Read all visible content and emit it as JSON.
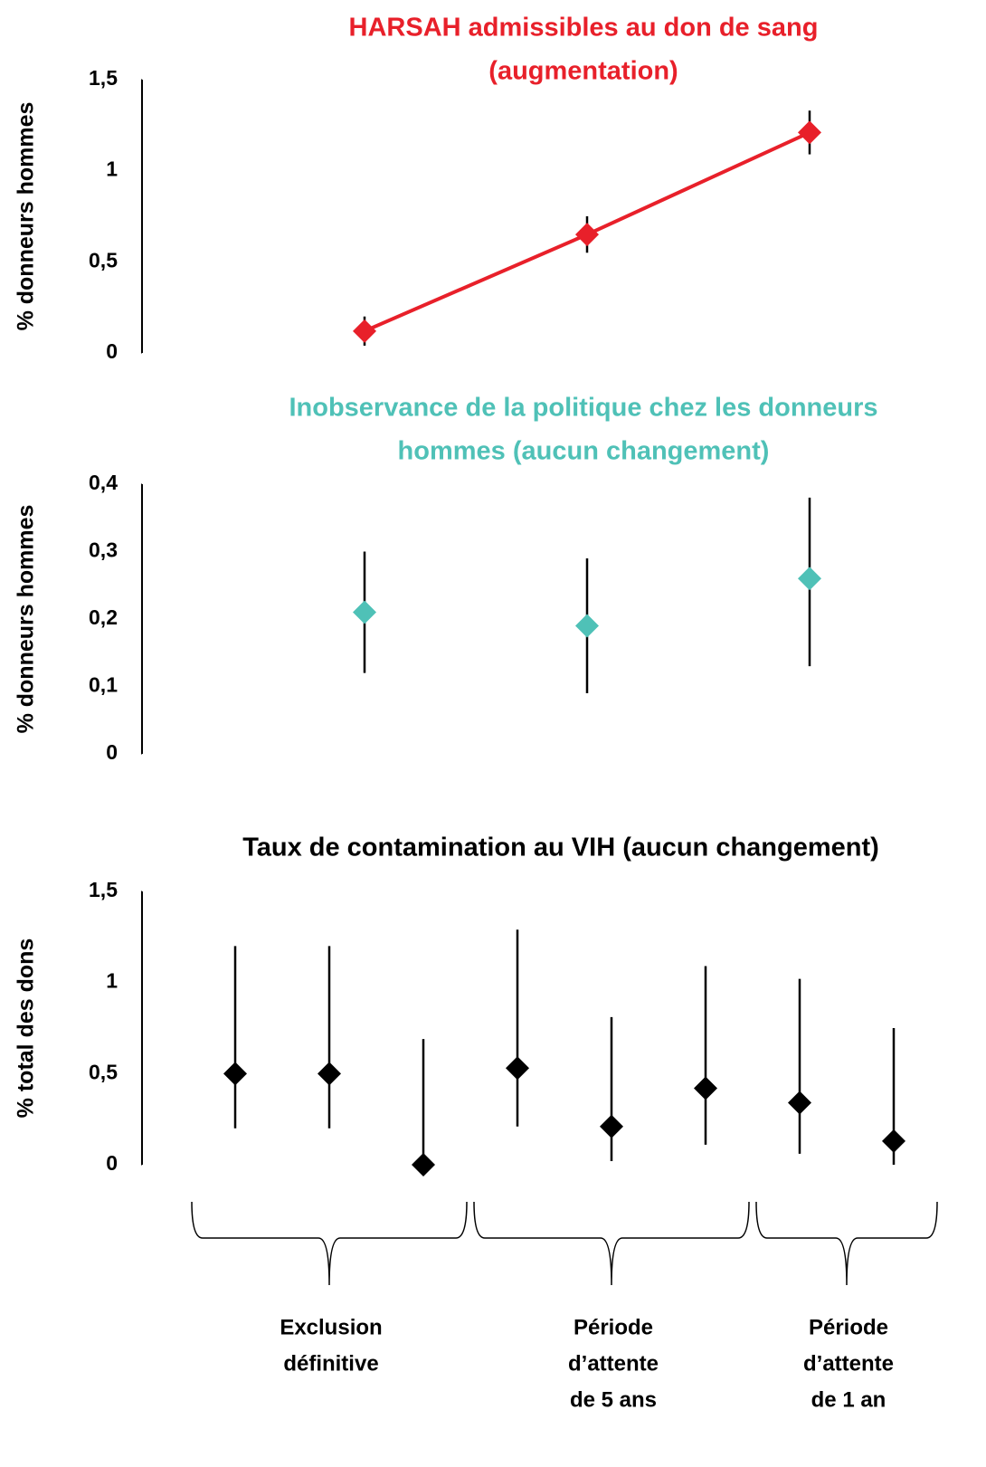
{
  "chart_data": [
    {
      "type": "line",
      "title": [
        "HARSAH admissibles au don de sang",
        "(augmentation)"
      ],
      "title_color": "#e8202a",
      "ylabel": "% donneurs hommes",
      "categories": [
        null,
        null,
        null
      ],
      "values": [
        0.12,
        0.65,
        1.21
      ],
      "ci_low": [
        0.04,
        0.55,
        1.09
      ],
      "ci_high": [
        0.2,
        0.75,
        1.33
      ],
      "color": "#e8202a",
      "ylim": [
        0,
        1.5
      ],
      "yticks": [
        0,
        {
          "value": 0.5,
          "label": "0,5"
        },
        1,
        {
          "value": 1.5,
          "label": "1,5"
        }
      ]
    },
    {
      "type": "scatter",
      "title": [
        "Inobservance de la politique chez les donneurs",
        "hommes (aucun changement)"
      ],
      "title_color": "#4fc1b7",
      "ylabel": "% donneurs hommes",
      "categories": [
        null,
        null,
        null
      ],
      "values": [
        0.21,
        0.19,
        0.26
      ],
      "ci_low": [
        0.12,
        0.09,
        0.13
      ],
      "ci_high": [
        0.3,
        0.29,
        0.38
      ],
      "color": "#4fc1b7",
      "ylim": [
        0,
        0.4
      ],
      "yticks": [
        0,
        {
          "value": 0.1,
          "label": "0,1"
        },
        {
          "value": 0.2,
          "label": "0,2"
        },
        {
          "value": 0.3,
          "label": "0,3"
        },
        {
          "value": 0.4,
          "label": "0,4"
        }
      ]
    },
    {
      "type": "scatter",
      "title": [
        "Taux de contamination au VIH (aucun changement)"
      ],
      "title_color": "#000000",
      "ylabel": "% total des dons",
      "categories": [
        null,
        null,
        null,
        null,
        null,
        null,
        null,
        null
      ],
      "values": [
        0.5,
        0.5,
        0,
        0.53,
        0.21,
        0.42,
        0.34,
        0.13
      ],
      "ci_low": [
        0.2,
        0.2,
        0,
        0.21,
        0.02,
        0.11,
        0.06,
        0
      ],
      "ci_high": [
        1.2,
        1.2,
        0.69,
        1.29,
        0.81,
        1.09,
        1.02,
        0.75
      ],
      "color": "#000000",
      "ylim": [
        0,
        1.5
      ],
      "yticks": [
        0,
        {
          "value": 0.5,
          "label": "0,5"
        },
        1,
        {
          "value": 1.5,
          "label": "1,5"
        }
      ],
      "group_labels": [
        [
          "Exclusion",
          "définitive"
        ],
        [
          "Période",
          "d’attente",
          "de 5 ans"
        ],
        [
          "Période",
          "d’attente",
          "de 1 an"
        ]
      ],
      "group_sizes": [
        3,
        3,
        2
      ]
    }
  ]
}
